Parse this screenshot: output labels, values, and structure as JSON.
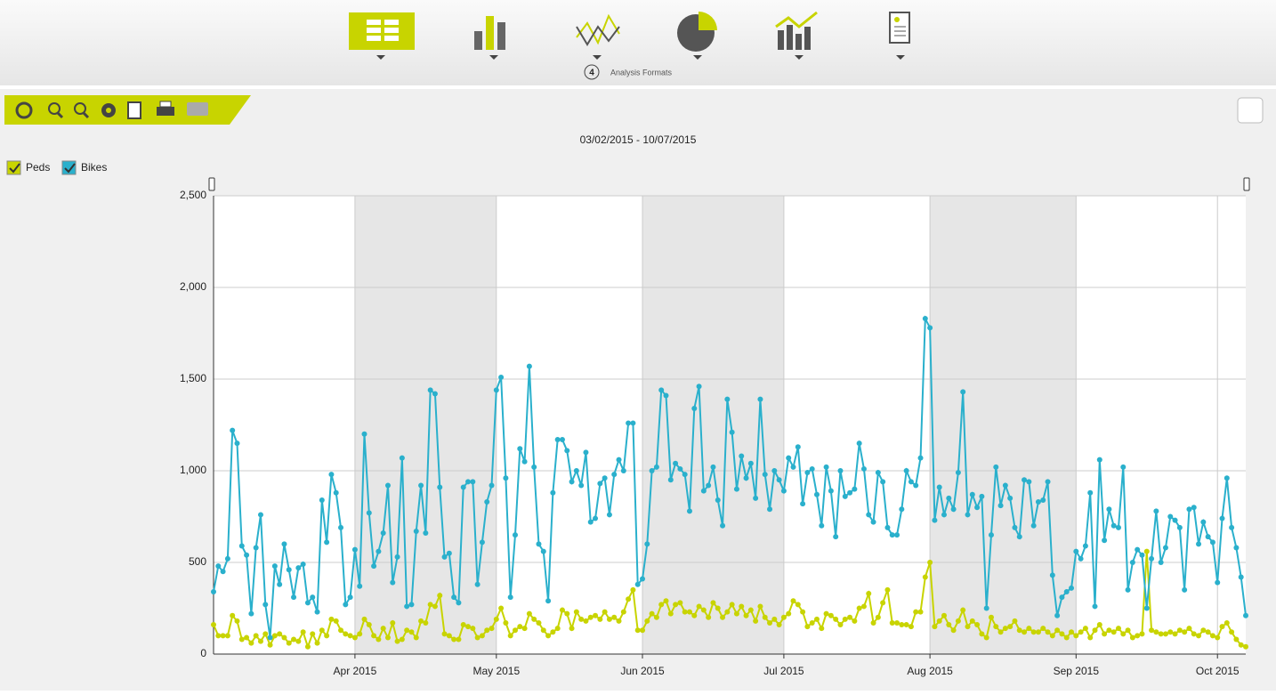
{
  "toolbar": {
    "badge": "4",
    "label": "Analysis Formats"
  },
  "chart_data": {
    "type": "line",
    "subtitle": "03/02/2015 - 10/07/2015",
    "xlim": [
      "03/02/2015",
      "10/07/2015"
    ],
    "xticks": [
      {
        "value": "04/01/2015",
        "label": "Apr 2015"
      },
      {
        "value": "05/01/2015",
        "label": "May 2015"
      },
      {
        "value": "06/01/2015",
        "label": "Jun 2015"
      },
      {
        "value": "07/01/2015",
        "label": "Jul 2015"
      },
      {
        "value": "08/01/2015",
        "label": "Aug 2015"
      },
      {
        "value": "09/01/2015",
        "label": "Sep 2015"
      },
      {
        "value": "10/01/2015",
        "label": "Oct 2015"
      }
    ],
    "ylim": [
      0,
      2500
    ],
    "yticks": [
      0,
      {
        "value": 500,
        "label": "500"
      },
      {
        "value": 1000,
        "label": "1,000"
      },
      {
        "value": 1500,
        "label": "1,500"
      },
      {
        "value": 2000,
        "label": "2,000"
      },
      {
        "value": 2500,
        "label": "2,500"
      }
    ],
    "grid": true,
    "series": [
      {
        "name": "Peds",
        "color": "#c8d400",
        "values": [
          160,
          100,
          100,
          100,
          210,
          180,
          80,
          90,
          60,
          100,
          70,
          110,
          50,
          100,
          110,
          90,
          60,
          80,
          70,
          120,
          40,
          110,
          60,
          130,
          100,
          190,
          180,
          130,
          110,
          100,
          90,
          110,
          190,
          160,
          100,
          80,
          140,
          90,
          170,
          70,
          80,
          130,
          120,
          90,
          180,
          170,
          270,
          260,
          320,
          110,
          100,
          80,
          80,
          160,
          150,
          140,
          90,
          100,
          130,
          140,
          190,
          250,
          170,
          100,
          130,
          150,
          140,
          220,
          190,
          170,
          130,
          100,
          120,
          140,
          240,
          220,
          140,
          230,
          190,
          180,
          200,
          210,
          190,
          230,
          190,
          200,
          180,
          230,
          300,
          350,
          130,
          130,
          180,
          220,
          200,
          270,
          290,
          220,
          270,
          280,
          230,
          230,
          210,
          260,
          240,
          200,
          280,
          250,
          200,
          230,
          270,
          220,
          260,
          210,
          240,
          180,
          260,
          200,
          170,
          190,
          160,
          200,
          220,
          290,
          270,
          230,
          150,
          170,
          190,
          140,
          220,
          210,
          190,
          160,
          190,
          200,
          180,
          250,
          260,
          330,
          170,
          200,
          280,
          350,
          170,
          170,
          160,
          160,
          150,
          230,
          230,
          420,
          500,
          150,
          180,
          210,
          160,
          130,
          180,
          240,
          150,
          180,
          160,
          110,
          90,
          200,
          150,
          120,
          140,
          150,
          180,
          130,
          120,
          140,
          120,
          120,
          140,
          120,
          100,
          130,
          110,
          90,
          120,
          100,
          120,
          140,
          90,
          130,
          160,
          110,
          130,
          120,
          140,
          110,
          130,
          90,
          100,
          110,
          560,
          130,
          120,
          110,
          110,
          120,
          110,
          130,
          120,
          140,
          110,
          100,
          130,
          120,
          100,
          90,
          150,
          170,
          120,
          80,
          50,
          40
        ]
      },
      {
        "name": "Bikes",
        "color": "#2ab0cc",
        "values": [
          340,
          480,
          450,
          520,
          1220,
          1150,
          590,
          540,
          220,
          580,
          760,
          270,
          90,
          480,
          380,
          600,
          460,
          310,
          470,
          490,
          280,
          310,
          230,
          840,
          610,
          980,
          880,
          690,
          270,
          310,
          570,
          370,
          1200,
          770,
          480,
          560,
          660,
          920,
          390,
          530,
          1070,
          260,
          270,
          670,
          920,
          660,
          1440,
          1420,
          910,
          530,
          550,
          310,
          280,
          910,
          940,
          940,
          380,
          610,
          830,
          920,
          1440,
          1510,
          960,
          310,
          650,
          1120,
          1050,
          1570,
          1020,
          600,
          560,
          290,
          880,
          1170,
          1170,
          1110,
          940,
          1000,
          920,
          1100,
          720,
          740,
          930,
          960,
          760,
          980,
          1060,
          1000,
          1260,
          1260,
          380,
          410,
          600,
          1000,
          1020,
          1440,
          1410,
          950,
          1040,
          1010,
          980,
          780,
          1340,
          1460,
          890,
          920,
          1020,
          840,
          700,
          1390,
          1210,
          900,
          1080,
          960,
          1040,
          850,
          1390,
          980,
          790,
          1000,
          950,
          890,
          1070,
          1020,
          1130,
          820,
          990,
          1010,
          870,
          700,
          1020,
          890,
          640,
          1000,
          860,
          880,
          900,
          1150,
          1010,
          760,
          720,
          990,
          940,
          690,
          650,
          650,
          790,
          1000,
          940,
          920,
          1070,
          1830,
          1780,
          730,
          910,
          760,
          850,
          790,
          990,
          1430,
          760,
          870,
          800,
          860,
          250,
          650,
          1020,
          810,
          920,
          850,
          690,
          640,
          950,
          940,
          700,
          830,
          840,
          940,
          430,
          210,
          310,
          340,
          360,
          560,
          520,
          590,
          880,
          260,
          1060,
          620,
          790,
          700,
          690,
          1020,
          350,
          500,
          570,
          540,
          250,
          520,
          780,
          500,
          580,
          750,
          730,
          690,
          350,
          790,
          800,
          600,
          720,
          640,
          610,
          390,
          740,
          960,
          690,
          580,
          420,
          210
        ]
      }
    ]
  }
}
